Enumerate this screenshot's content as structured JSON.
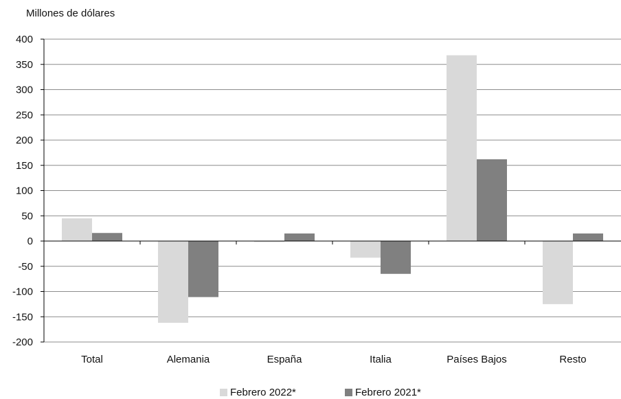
{
  "chart_data": {
    "type": "bar",
    "ylabel": "Millones de dólares",
    "xlabel": "",
    "title": "",
    "categories": [
      "Total",
      "Alemania",
      "España",
      "Italia",
      "Países Bajos",
      "Resto"
    ],
    "series": [
      {
        "name": "Febrero 2022*",
        "color": "#d9d9d9",
        "values": [
          45,
          -162,
          -2,
          -33,
          368,
          -125
        ]
      },
      {
        "name": "Febrero 2021*",
        "color": "#808080",
        "values": [
          16,
          -111,
          15,
          -65,
          162,
          15
        ]
      }
    ],
    "ylim": [
      -200,
      400
    ],
    "yticks": [
      400,
      350,
      300,
      250,
      200,
      150,
      100,
      50,
      0,
      -50,
      -100,
      -150,
      -200
    ],
    "grid": true,
    "legend_position": "bottom"
  }
}
